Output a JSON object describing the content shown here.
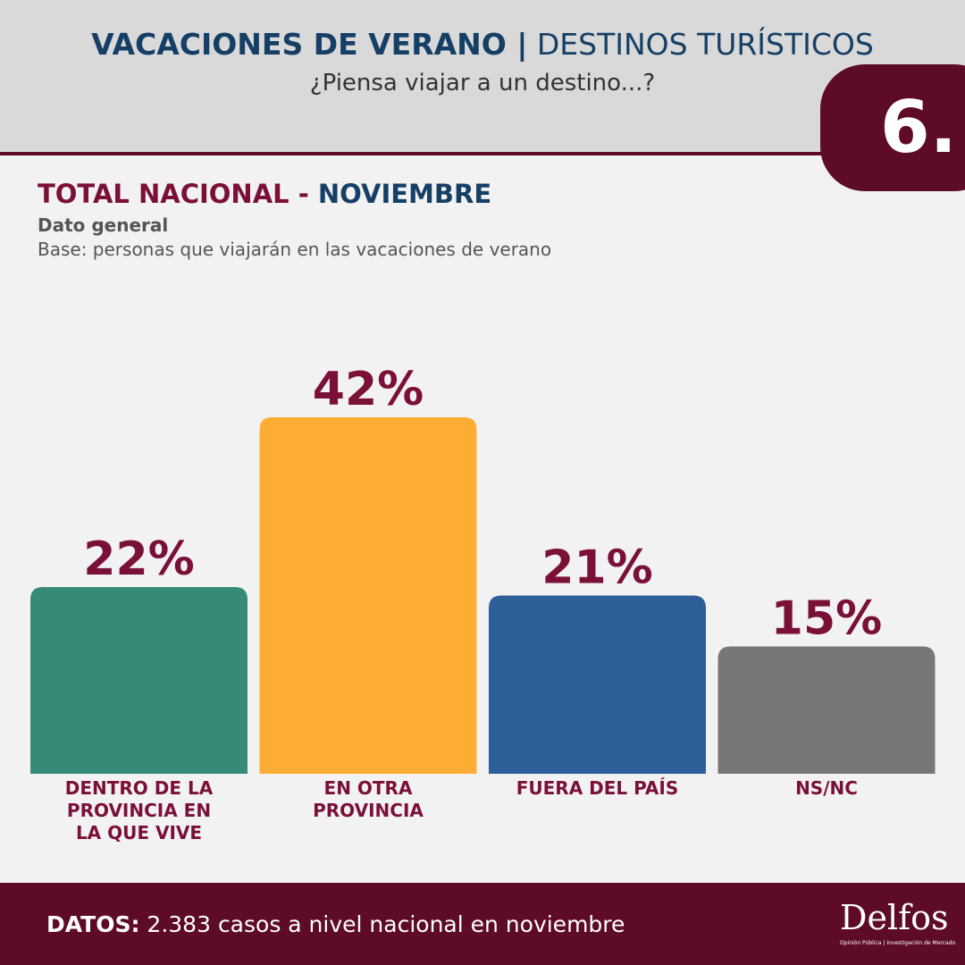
{
  "header": {
    "title_bold": "VACACIONES DE VERANO |",
    "title_light": "DESTINOS TURÍSTICOS",
    "question": "¿Piensa viajar a un destino...?",
    "badge": "6."
  },
  "chart_data": {
    "type": "bar",
    "title_a": "TOTAL NACIONAL -",
    "title_b": "NOVIEMBRE",
    "subtitle": "Dato general",
    "note": "Base: personas que viajarán en las vacaciones de verano",
    "categories": [
      "DENTRO DE LA PROVINCIA EN LA QUE VIVE",
      "EN OTRA PROVINCIA",
      "FUERA DEL PAÍS",
      "NS/NC"
    ],
    "values": [
      22,
      42,
      21,
      15
    ],
    "value_labels": [
      "22%",
      "42%",
      "21%",
      "15%"
    ],
    "colors": [
      "#358a78",
      "#fdad33",
      "#2e5f98",
      "#777777"
    ]
  },
  "footer": {
    "label": "DATOS:",
    "text": "2.383 casos a nivel nacional en noviembre",
    "logo": "Delfos",
    "tagline": "Opinión Pública | Investigación de Mercado"
  }
}
